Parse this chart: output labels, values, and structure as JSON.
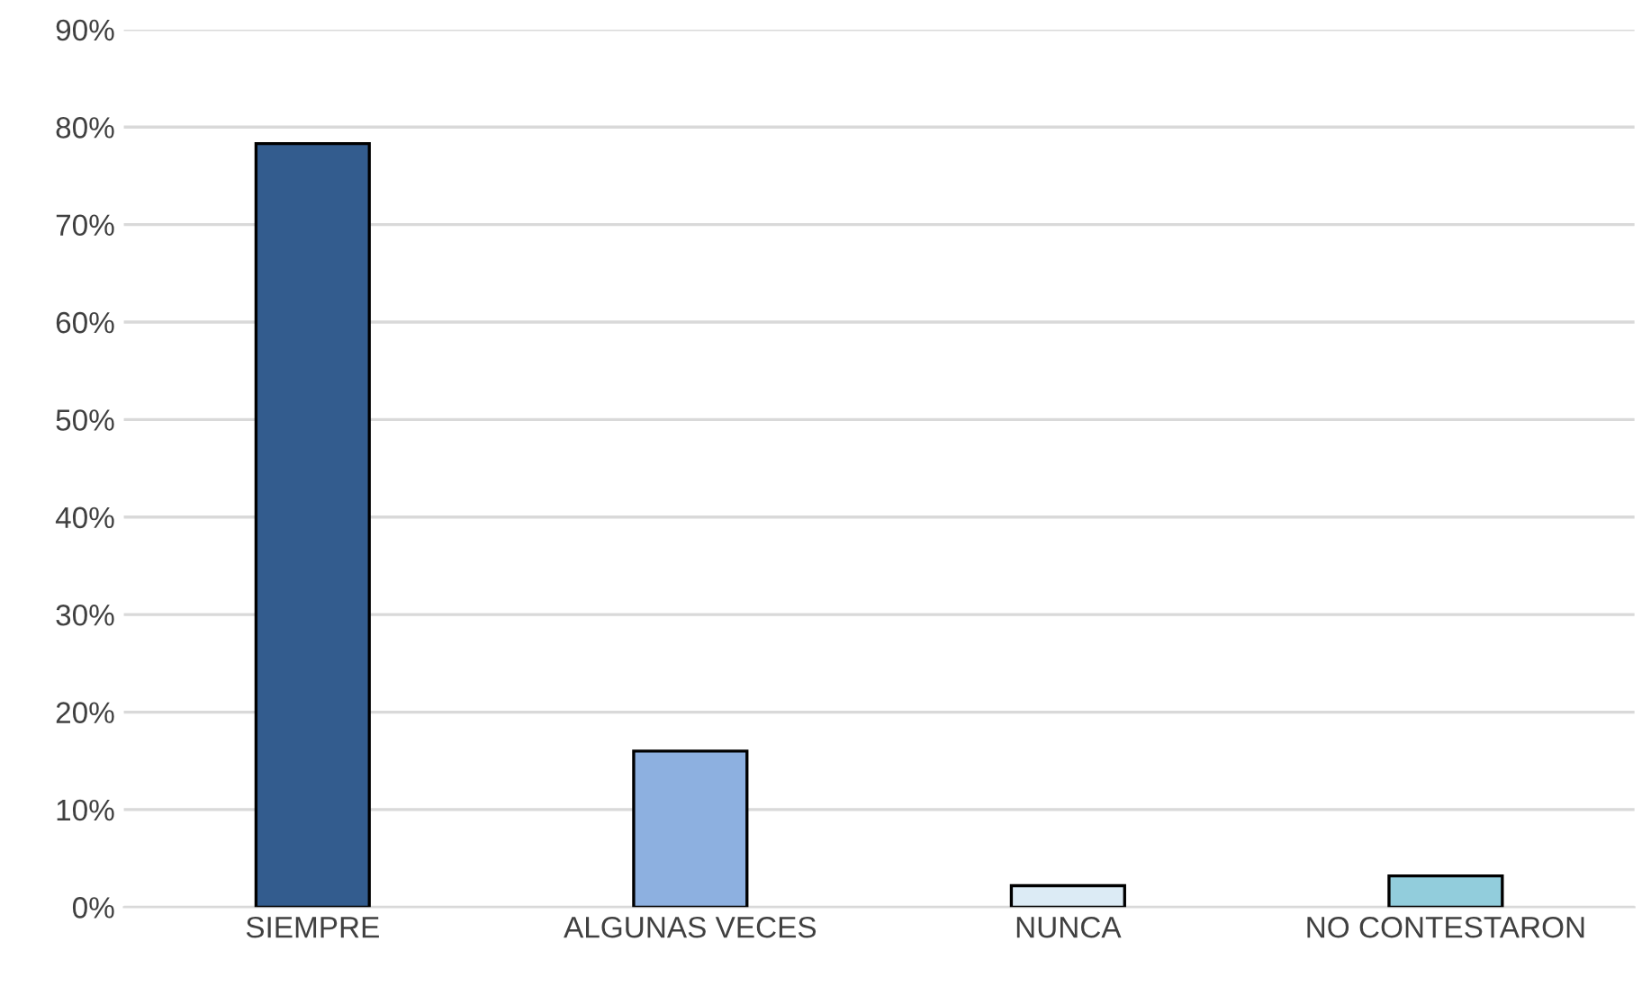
{
  "chart_data": {
    "type": "bar",
    "categories": [
      "SIEMPRE",
      "ALGUNAS VECES",
      "NUNCA",
      "NO CONTESTARON"
    ],
    "values": [
      78.3,
      16,
      2.2,
      3.2
    ],
    "colors": [
      "#335c8e",
      "#8db0e0",
      "#dcebf5",
      "#92cddc"
    ],
    "ylim": [
      0,
      90
    ],
    "yticks": [
      {
        "value": 0,
        "label": "0%"
      },
      {
        "value": 10,
        "label": "10%"
      },
      {
        "value": 20,
        "label": "20%"
      },
      {
        "value": 30,
        "label": "30%"
      },
      {
        "value": 40,
        "label": "40%"
      },
      {
        "value": 50,
        "label": "50%"
      },
      {
        "value": 60,
        "label": "60%"
      },
      {
        "value": 70,
        "label": "70%"
      },
      {
        "value": 80,
        "label": "80%"
      },
      {
        "value": 90,
        "label": "90%"
      }
    ],
    "grid": "y"
  }
}
